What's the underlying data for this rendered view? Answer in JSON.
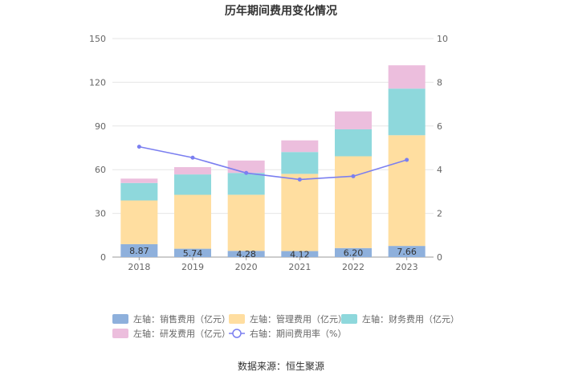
{
  "chart_data": {
    "type": "bar",
    "title": "历年期间费用变化情况",
    "categories": [
      "2018",
      "2019",
      "2020",
      "2021",
      "2022",
      "2023"
    ],
    "left_axis": {
      "ylim": [
        0,
        150
      ],
      "ticks": [
        "0",
        "30",
        "60",
        "90",
        "120",
        "150"
      ]
    },
    "right_axis": {
      "ylim": [
        0,
        10
      ],
      "ticks": [
        "0",
        "2",
        "4",
        "6",
        "8",
        "10"
      ]
    },
    "series": [
      {
        "name": "左轴：销售费用（亿元）",
        "type": "bar",
        "stack": "total",
        "color": "#8eb0dc",
        "values": [
          8.87,
          5.74,
          4.28,
          4.12,
          6.2,
          7.66
        ]
      },
      {
        "name": "左轴：管理费用（亿元）",
        "type": "bar",
        "stack": "total",
        "color": "#ffdea0",
        "values": [
          30.0,
          37.0,
          38.5,
          53.0,
          63.0,
          76.0
        ]
      },
      {
        "name": "左轴：财务费用（亿元）",
        "type": "bar",
        "stack": "total",
        "color": "#8ed8dc",
        "values": [
          12.0,
          14.0,
          15.0,
          15.0,
          18.5,
          32.0
        ]
      },
      {
        "name": "左轴：研发费用（亿元）",
        "type": "bar",
        "stack": "total",
        "color": "#ecbedd",
        "values": [
          3.0,
          5.0,
          8.5,
          8.0,
          12.3,
          16.0
        ]
      },
      {
        "name": "右轴：期间费用率（%）",
        "type": "line",
        "axis": "right",
        "color": "#7b7ff0",
        "values": [
          5.05,
          4.55,
          3.85,
          3.55,
          3.7,
          4.45
        ]
      }
    ],
    "data_labels": [
      "8.87",
      "5.74",
      "4.28",
      "4.12",
      "6.20",
      "7.66"
    ],
    "grid": true,
    "legend_position": "bottom"
  },
  "source": "数据来源：恒生聚源"
}
